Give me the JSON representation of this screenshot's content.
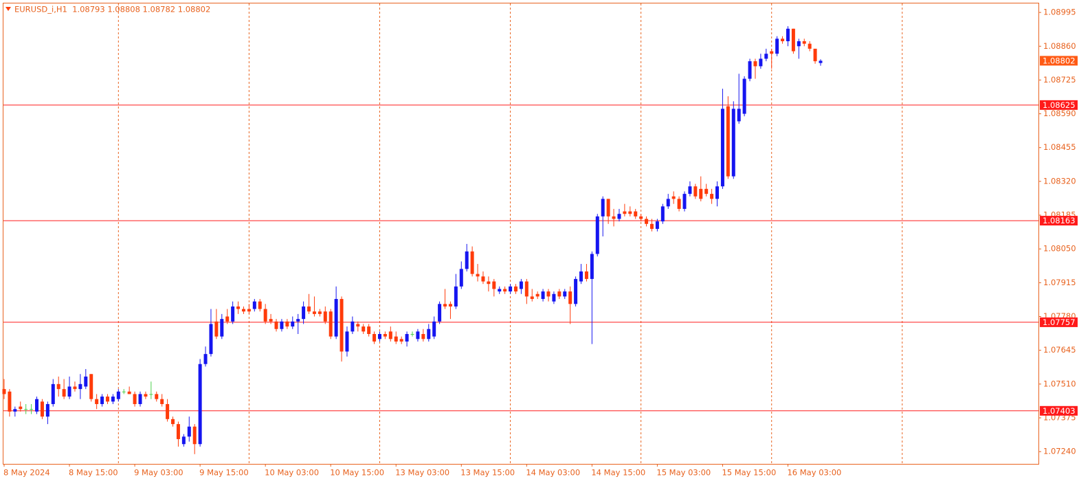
{
  "chart_data": {
    "type": "candlestick",
    "title": "EURUSD_i,H1  1.08793 1.08808 1.08782 1.08802",
    "categories": [
      "8 May 2024",
      null,
      null,
      null,
      null,
      null,
      null,
      null,
      null,
      null,
      null,
      null,
      "8 May 15:00",
      null,
      null,
      null,
      null,
      null,
      null,
      null,
      null,
      null,
      null,
      null,
      "9 May 03:00",
      null,
      null,
      null,
      null,
      null,
      null,
      null,
      null,
      null,
      null,
      null,
      "9 May 15:00",
      null,
      null,
      null,
      null,
      null,
      null,
      null,
      null,
      null,
      null,
      null,
      "10 May 03:00",
      null,
      null,
      null,
      null,
      null,
      null,
      null,
      null,
      null,
      null,
      null,
      "10 May 15:00",
      null,
      null,
      null,
      null,
      null,
      null,
      null,
      null,
      null,
      null,
      null,
      "13 May 03:00",
      null,
      null,
      null,
      null,
      null,
      null,
      null,
      null,
      null,
      null,
      null,
      "13 May 15:00",
      null,
      null,
      null,
      null,
      null,
      null,
      null,
      null,
      null,
      null,
      null,
      "14 May 03:00",
      null,
      null,
      null,
      null,
      null,
      null,
      null,
      null,
      null,
      null,
      null,
      "14 May 15:00",
      null,
      null,
      null,
      null,
      null,
      null,
      null,
      null,
      null,
      null,
      null,
      "15 May 03:00",
      null,
      null,
      null,
      null,
      null,
      null,
      null,
      null,
      null,
      null,
      null,
      "15 May 15:00",
      null,
      null,
      null,
      null,
      null,
      null,
      null,
      null,
      null,
      null,
      null,
      "16 May 03:00",
      null,
      null,
      null,
      null,
      null,
      null
    ],
    "open": [
      1.0749,
      1.0748,
      1.074,
      1.0742,
      1.0741,
      1.0741,
      1.074,
      1.0744,
      1.0738,
      1.0743,
      1.0751,
      1.0749,
      1.0746,
      1.075,
      1.0749,
      1.075,
      1.0755,
      1.0745,
      1.0743,
      1.0746,
      1.0744,
      1.0745,
      1.0748,
      1.0748,
      1.0747,
      1.0743,
      1.0747,
      1.0747,
      1.0747,
      1.0745,
      1.0743,
      1.0737,
      1.0735,
      1.0727,
      1.073,
      1.0734,
      1.0727,
      1.0759,
      1.0763,
      1.0776,
      1.077,
      1.0778,
      1.0776,
      1.0782,
      1.0781,
      1.0781,
      1.0781,
      1.0784,
      1.0781,
      1.0777,
      1.0776,
      1.0773,
      1.0776,
      1.0774,
      1.0776,
      1.0777,
      1.0782,
      1.078,
      1.078,
      1.078,
      1.078,
      1.077,
      1.0785,
      1.0764,
      1.0772,
      1.0775,
      1.0774,
      1.0774,
      1.0771,
      1.0769,
      1.0771,
      1.0772,
      1.077,
      1.0769,
      1.0768,
      1.0771,
      1.0769,
      1.0771,
      1.0769,
      1.077,
      1.0776,
      1.0783,
      1.0783,
      1.0782,
      1.079,
      1.0797,
      1.0804,
      1.0795,
      1.0794,
      1.0792,
      1.0792,
      1.0788,
      1.0789,
      1.0788,
      1.079,
      1.0789,
      1.0792,
      1.0786,
      1.0787,
      1.0785,
      1.0788,
      1.0784,
      1.0788,
      1.0786,
      1.0788,
      1.0783,
      1.0792,
      1.0796,
      1.0793,
      1.0803,
      1.0818,
      1.0825,
      1.0818,
      1.0817,
      1.082,
      1.082,
      1.082,
      1.0818,
      1.0817,
      1.0815,
      1.0813,
      1.0816,
      1.0822,
      1.0826,
      1.0825,
      1.0821,
      1.0827,
      1.083,
      1.0829,
      1.0829,
      1.0827,
      1.0825,
      1.083,
      1.0862,
      1.0834,
      1.0856,
      1.0859,
      1.0873,
      1.088,
      1.0878,
      1.0881,
      1.0884,
      1.0883,
      1.0889,
      1.0888,
      1.0893,
      1.0886,
      1.0888,
      1.0887,
      1.0885,
      1.08793
    ],
    "high": [
      1.0753,
      1.0749,
      1.0742,
      1.0744,
      1.0743,
      1.0743,
      1.0746,
      1.0745,
      1.0744,
      1.0753,
      1.0754,
      1.0753,
      1.0754,
      1.0752,
      1.0755,
      1.0757,
      1.0755,
      1.0747,
      1.0747,
      1.0747,
      1.0747,
      1.0749,
      1.0749,
      1.075,
      1.0748,
      1.0748,
      1.0748,
      1.0752,
      1.0748,
      1.0747,
      1.0745,
      1.0738,
      1.0736,
      1.0731,
      1.0738,
      1.0735,
      1.0761,
      1.0766,
      1.0781,
      1.0781,
      1.0779,
      1.0781,
      1.0784,
      1.0784,
      1.0782,
      1.0783,
      1.0785,
      1.0785,
      1.0783,
      1.0779,
      1.0777,
      1.0777,
      1.0777,
      1.0778,
      1.0779,
      1.0784,
      1.0787,
      1.0786,
      1.0781,
      1.0782,
      1.0781,
      1.079,
      1.0786,
      1.0774,
      1.0778,
      1.0776,
      1.0775,
      1.0775,
      1.0772,
      1.0772,
      1.0772,
      1.0774,
      1.0772,
      1.077,
      1.0772,
      1.0772,
      1.0773,
      1.0773,
      1.0775,
      1.0778,
      1.0784,
      1.0789,
      1.0784,
      1.0795,
      1.08,
      1.0807,
      1.0806,
      1.0799,
      1.0796,
      1.0794,
      1.0793,
      1.079,
      1.079,
      1.0791,
      1.0791,
      1.0793,
      1.0793,
      1.0789,
      1.0788,
      1.0789,
      1.0789,
      1.0788,
      1.0789,
      1.0789,
      1.079,
      1.0794,
      1.0799,
      1.0799,
      1.0804,
      1.0819,
      1.0826,
      1.0825,
      1.0821,
      1.0821,
      1.0823,
      1.0822,
      1.0821,
      1.0819,
      1.0818,
      1.0817,
      1.0817,
      1.0823,
      1.0827,
      1.0828,
      1.0826,
      1.0828,
      1.0832,
      1.0831,
      1.0834,
      1.0831,
      1.0829,
      1.0832,
      1.0869,
      1.0866,
      1.0864,
      1.0875,
      1.0874,
      1.0881,
      1.0881,
      1.0883,
      1.0885,
      1.0885,
      1.089,
      1.089,
      1.0894,
      1.0893,
      1.0889,
      1.0889,
      1.0888,
      1.0885,
      1.08808
    ],
    "low": [
      1.0745,
      1.0738,
      1.0738,
      1.074,
      1.0739,
      1.0739,
      1.0739,
      1.0737,
      1.0735,
      1.0742,
      1.0746,
      1.0745,
      1.0745,
      1.0748,
      1.0745,
      1.0749,
      1.0744,
      1.0741,
      1.0742,
      1.0743,
      1.0743,
      1.0744,
      1.0747,
      1.0747,
      1.0742,
      1.0742,
      1.0745,
      1.0745,
      1.0744,
      1.0742,
      1.0736,
      1.0734,
      1.0726,
      1.0726,
      1.0728,
      1.0723,
      1.0726,
      1.0758,
      1.0762,
      1.0769,
      1.0769,
      1.0775,
      1.0775,
      1.0779,
      1.0779,
      1.0779,
      1.078,
      1.078,
      1.0775,
      1.0775,
      1.0772,
      1.0772,
      1.0773,
      1.0773,
      1.0771,
      1.0775,
      1.0779,
      1.0778,
      1.0778,
      1.0775,
      1.0769,
      1.0769,
      1.076,
      1.0762,
      1.0771,
      1.0772,
      1.0771,
      1.077,
      1.0767,
      1.0768,
      1.0769,
      1.0768,
      1.0767,
      1.0767,
      1.0766,
      1.077,
      1.0768,
      1.0768,
      1.0768,
      1.0769,
      1.0775,
      1.0781,
      1.0777,
      1.0781,
      1.0789,
      1.0796,
      1.0794,
      1.0792,
      1.0791,
      1.0788,
      1.0786,
      1.0787,
      1.0787,
      1.0787,
      1.0787,
      1.0787,
      1.0783,
      1.0784,
      1.0785,
      1.0784,
      1.0784,
      1.0783,
      1.0785,
      1.0785,
      1.0775,
      1.0782,
      1.0791,
      1.0792,
      1.0767,
      1.0802,
      1.081,
      1.0815,
      1.0814,
      1.0816,
      1.0818,
      1.0818,
      1.0817,
      1.0816,
      1.0814,
      1.0812,
      1.0812,
      1.0815,
      1.0821,
      1.0823,
      1.082,
      1.082,
      1.0826,
      1.0825,
      1.0824,
      1.0826,
      1.0823,
      1.0822,
      1.0829,
      1.0833,
      1.0833,
      1.0855,
      1.0858,
      1.0872,
      1.0873,
      1.0877,
      1.088,
      1.0877,
      1.0882,
      1.0887,
      1.0886,
      1.0883,
      1.0881,
      1.0886,
      1.0884,
      1.0879,
      1.08782
    ],
    "close": [
      1.0747,
      1.074,
      1.0741,
      1.0741,
      1.0741,
      1.0741,
      1.0745,
      1.0738,
      1.0743,
      1.0751,
      1.0749,
      1.0746,
      1.075,
      1.0749,
      1.0751,
      1.0754,
      1.0745,
      1.0743,
      1.0746,
      1.0744,
      1.0746,
      1.0748,
      1.0748,
      1.0747,
      1.0743,
      1.0747,
      1.0746,
      1.0747,
      1.0745,
      1.0743,
      1.0737,
      1.0735,
      1.0729,
      1.073,
      1.0734,
      1.0727,
      1.0759,
      1.0763,
      1.0775,
      1.077,
      1.0777,
      1.0776,
      1.0782,
      1.0781,
      1.078,
      1.078,
      1.0784,
      1.0781,
      1.0776,
      1.0776,
      1.0773,
      1.0776,
      1.0774,
      1.0776,
      1.0777,
      1.0782,
      1.078,
      1.0779,
      1.0779,
      1.0776,
      1.077,
      1.0785,
      1.0764,
      1.0772,
      1.0776,
      1.0774,
      1.0772,
      1.0771,
      1.0768,
      1.0771,
      1.077,
      1.0769,
      1.0768,
      1.0768,
      1.0771,
      1.0771,
      1.0772,
      1.0769,
      1.0773,
      1.0776,
      1.0783,
      1.0782,
      1.0782,
      1.079,
      1.0797,
      1.0804,
      1.0795,
      1.0794,
      1.0792,
      1.0791,
      1.0789,
      1.0789,
      1.0788,
      1.079,
      1.0788,
      1.0792,
      1.0786,
      1.0785,
      1.0786,
      1.0788,
      1.0786,
      1.0787,
      1.0786,
      1.0788,
      1.0783,
      1.0793,
      1.0796,
      1.0793,
      1.0803,
      1.0818,
      1.0825,
      1.0818,
      1.0817,
      1.0819,
      1.0819,
      1.0819,
      1.0818,
      1.0817,
      1.0815,
      1.0813,
      1.0816,
      1.0822,
      1.0825,
      1.0825,
      1.0821,
      1.0827,
      1.083,
      1.0826,
      1.0825,
      1.0827,
      1.0825,
      1.083,
      1.0861,
      1.0834,
      1.0861,
      1.0861,
      1.0873,
      1.088,
      1.0878,
      1.0881,
      1.0883,
      1.0883,
      1.0889,
      1.0888,
      1.0893,
      1.0884,
      1.0888,
      1.0887,
      1.0885,
      1.088,
      1.08802
    ],
    "up_color": "#1515f0",
    "down_color": "#ff3b0a",
    "doji_color": "#4ccf4c",
    "ylim": [
      1.07191,
      1.09031
    ],
    "yticks": [
      1.08995,
      {
        "value": 1.0886,
        "label": "1.08860"
      },
      1.08725,
      {
        "value": 1.0859,
        "label": "1.08590"
      },
      1.08455,
      {
        "value": 1.0832,
        "label": "1.08320"
      },
      1.08185,
      {
        "value": 1.0805,
        "label": "1.08050"
      },
      1.07915,
      {
        "value": 1.0778,
        "label": "1.07780"
      },
      1.07645,
      {
        "value": 1.0751,
        "label": "1.07510"
      },
      1.07375,
      {
        "value": 1.0724,
        "label": "1.07240"
      }
    ],
    "hlines": [
      1.08625,
      1.08163,
      1.07757,
      1.07403
    ],
    "hline_color": "#ff1a1a",
    "last_price": 1.08802,
    "last_price_color": "#ff5a14",
    "grid": true
  }
}
